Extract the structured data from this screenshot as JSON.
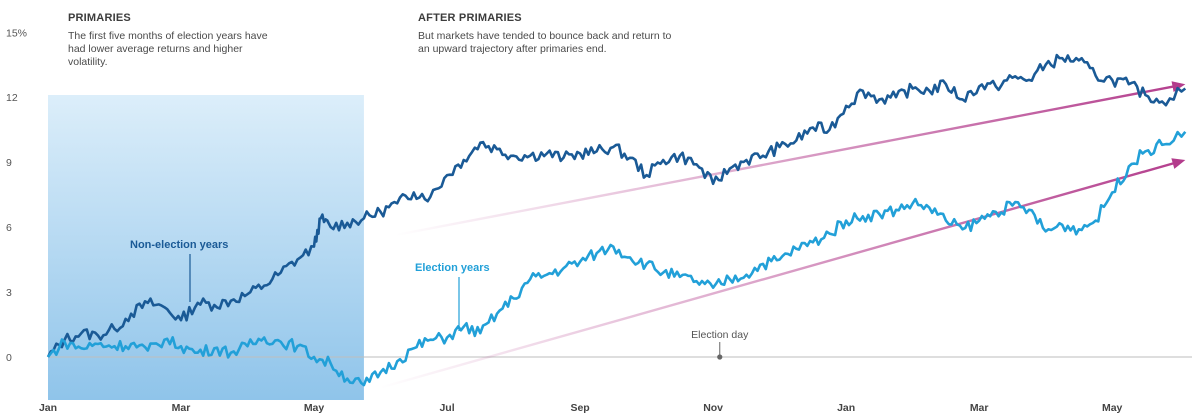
{
  "chart_data": {
    "type": "line",
    "ylabel": "",
    "xlabel": "",
    "y_unit": "%",
    "ylim": [
      -1.5,
      15
    ],
    "y_ticks": [
      {
        "value": 0,
        "label": "0"
      },
      {
        "value": 3,
        "label": "3"
      },
      {
        "value": 6,
        "label": "6"
      },
      {
        "value": 9,
        "label": "9"
      },
      {
        "value": 12,
        "label": "12"
      },
      {
        "value": 15,
        "label": "15%"
      }
    ],
    "x_ticks": [
      {
        "label": "Jan",
        "month": 0
      },
      {
        "label": "Mar",
        "month": 2
      },
      {
        "label": "May",
        "month": 4
      },
      {
        "label": "Jul",
        "month": 6
      },
      {
        "label": "Sep",
        "month": 8
      },
      {
        "label": "Nov",
        "month": 10
      },
      {
        "label": "Jan",
        "month": 12
      },
      {
        "label": "Mar",
        "month": 14
      },
      {
        "label": "May",
        "month": 16
      }
    ],
    "xlim_months": [
      0,
      17.2
    ],
    "primaries_shade_months": [
      0,
      4.75
    ],
    "series": [
      {
        "name": "Non-election years",
        "color": "#1a5a96",
        "points": [
          [
            0,
            0
          ],
          [
            0.25,
            0.8
          ],
          [
            0.5,
            1.1
          ],
          [
            0.75,
            1.0
          ],
          [
            1,
            1.3
          ],
          [
            1.25,
            2.0
          ],
          [
            1.5,
            2.5
          ],
          [
            1.75,
            2.3
          ],
          [
            2,
            1.7
          ],
          [
            2.25,
            2.5
          ],
          [
            2.5,
            2.4
          ],
          [
            2.75,
            2.6
          ],
          [
            3,
            2.9
          ],
          [
            3.25,
            3.3
          ],
          [
            3.5,
            3.9
          ],
          [
            3.75,
            4.5
          ],
          [
            4,
            5.1
          ],
          [
            4.1,
            6.4
          ],
          [
            4.25,
            6.0
          ],
          [
            4.5,
            6.2
          ],
          [
            4.75,
            6.4
          ],
          [
            5,
            6.7
          ],
          [
            5.25,
            7.1
          ],
          [
            5.5,
            7.6
          ],
          [
            5.75,
            7.4
          ],
          [
            6,
            8.4
          ],
          [
            6.25,
            9.1
          ],
          [
            6.5,
            9.9
          ],
          [
            6.75,
            9.6
          ],
          [
            7,
            9.3
          ],
          [
            7.25,
            9.3
          ],
          [
            7.5,
            9.4
          ],
          [
            7.75,
            9.2
          ],
          [
            8,
            9.4
          ],
          [
            8.25,
            9.5
          ],
          [
            8.5,
            9.7
          ],
          [
            8.75,
            9.2
          ],
          [
            9,
            8.4
          ],
          [
            9.25,
            9.1
          ],
          [
            9.5,
            9.3
          ],
          [
            9.75,
            8.9
          ],
          [
            10,
            8.0
          ],
          [
            10.25,
            8.7
          ],
          [
            10.5,
            9.1
          ],
          [
            10.75,
            9.3
          ],
          [
            11,
            9.7
          ],
          [
            11.25,
            10.0
          ],
          [
            11.5,
            10.6
          ],
          [
            11.75,
            10.5
          ],
          [
            12,
            11.6
          ],
          [
            12.25,
            12.3
          ],
          [
            12.5,
            11.9
          ],
          [
            12.75,
            12.0
          ],
          [
            13,
            12.4
          ],
          [
            13.25,
            12.3
          ],
          [
            13.5,
            12.6
          ],
          [
            13.75,
            11.9
          ],
          [
            14,
            12.5
          ],
          [
            14.25,
            12.5
          ],
          [
            14.5,
            12.9
          ],
          [
            14.75,
            12.8
          ],
          [
            15,
            13.5
          ],
          [
            15.25,
            13.8
          ],
          [
            15.5,
            13.7
          ],
          [
            15.75,
            13.0
          ],
          [
            16,
            12.8
          ],
          [
            16.25,
            12.6
          ],
          [
            16.5,
            12.1
          ],
          [
            16.75,
            11.8
          ],
          [
            17.1,
            12.4
          ]
        ]
      },
      {
        "name": "Election years",
        "color": "#22a0d8",
        "points": [
          [
            0,
            0
          ],
          [
            0.25,
            0.7
          ],
          [
            0.5,
            0.4
          ],
          [
            0.75,
            0.6
          ],
          [
            1,
            0.5
          ],
          [
            1.25,
            0.6
          ],
          [
            1.5,
            0.3
          ],
          [
            1.75,
            0.8
          ],
          [
            2,
            0.5
          ],
          [
            2.25,
            0.2
          ],
          [
            2.5,
            0.4
          ],
          [
            2.75,
            0.2
          ],
          [
            3,
            0.5
          ],
          [
            3.25,
            0.9
          ],
          [
            3.5,
            0.7
          ],
          [
            3.75,
            0.5
          ],
          [
            4,
            0.0
          ],
          [
            4.25,
            -0.3
          ],
          [
            4.5,
            -1.0
          ],
          [
            4.75,
            -1.3
          ],
          [
            5,
            -0.7
          ],
          [
            5.25,
            -0.2
          ],
          [
            5.5,
            0.4
          ],
          [
            5.75,
            0.8
          ],
          [
            6,
            0.9
          ],
          [
            6.25,
            1.4
          ],
          [
            6.5,
            1.1
          ],
          [
            6.75,
            2.0
          ],
          [
            7,
            2.7
          ],
          [
            7.25,
            3.6
          ],
          [
            7.5,
            3.8
          ],
          [
            7.75,
            4.1
          ],
          [
            8,
            4.4
          ],
          [
            8.25,
            4.8
          ],
          [
            8.5,
            5.1
          ],
          [
            8.75,
            4.6
          ],
          [
            9,
            4.3
          ],
          [
            9.25,
            3.9
          ],
          [
            9.5,
            3.7
          ],
          [
            9.75,
            3.5
          ],
          [
            10,
            3.2
          ],
          [
            10.25,
            3.6
          ],
          [
            10.5,
            3.8
          ],
          [
            10.75,
            4.3
          ],
          [
            11,
            4.5
          ],
          [
            11.25,
            5.0
          ],
          [
            11.5,
            5.3
          ],
          [
            11.75,
            5.7
          ],
          [
            12,
            6.3
          ],
          [
            12.25,
            6.5
          ],
          [
            12.5,
            6.6
          ],
          [
            12.75,
            6.8
          ],
          [
            13,
            7.1
          ],
          [
            13.25,
            6.9
          ],
          [
            13.5,
            6.3
          ],
          [
            13.75,
            5.9
          ],
          [
            14,
            6.3
          ],
          [
            14.25,
            6.7
          ],
          [
            14.5,
            7.0
          ],
          [
            14.75,
            6.8
          ],
          [
            15,
            5.8
          ],
          [
            15.25,
            6.1
          ],
          [
            15.5,
            5.9
          ],
          [
            15.75,
            6.3
          ],
          [
            16,
            7.6
          ],
          [
            16.25,
            8.8
          ],
          [
            16.5,
            9.5
          ],
          [
            16.75,
            9.8
          ],
          [
            17.1,
            10.4
          ]
        ]
      }
    ],
    "trend_arrows": [
      {
        "from": [
          5.0,
          5.5
        ],
        "to": [
          17.1,
          12.6
        ],
        "color": "#b33c8c"
      },
      {
        "from": [
          4.9,
          -1.5
        ],
        "to": [
          17.1,
          9.1
        ],
        "color": "#b33c8c"
      }
    ],
    "series_labels": [
      {
        "text": "Non-election years",
        "color": "#1a5a96",
        "series": 0
      },
      {
        "text": "Election years",
        "color": "#22a0d8",
        "series": 1
      }
    ],
    "election_day": {
      "label": "Election day",
      "month": 10.1
    }
  },
  "annotations": {
    "primaries": {
      "title": "PRIMARIES",
      "body": "The first five months of election years have had lower average returns and higher volatility."
    },
    "after_primaries": {
      "title": "AFTER PRIMARIES",
      "body": "But markets have tended to bounce back and return to an upward trajectory after primaries end."
    }
  }
}
